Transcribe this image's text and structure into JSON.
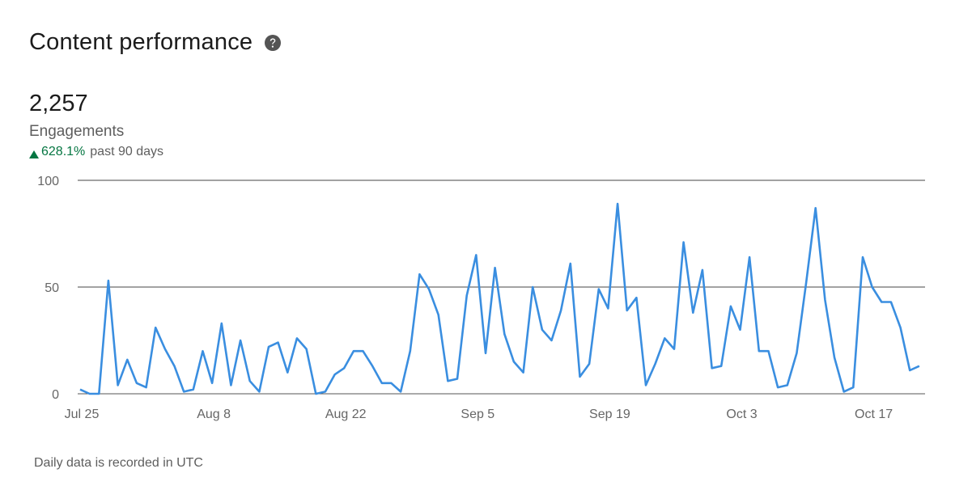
{
  "header": {
    "title": "Content performance",
    "help_icon": "question-circle-icon"
  },
  "metric": {
    "value": "2,257",
    "label": "Engagements",
    "change": "628.1%",
    "change_direction": "up",
    "change_icon": "triangle-up-icon",
    "period": "past 90 days",
    "change_color": "#057642"
  },
  "footnote": "Daily data is recorded in UTC",
  "chart_data": {
    "type": "line",
    "title": "",
    "xlabel": "",
    "ylabel": "",
    "ylim": [
      0,
      100
    ],
    "y_ticks": [
      "100",
      "50",
      "0"
    ],
    "grid": "horizontal",
    "x_tick_labels": [
      "Jul 25",
      "Aug 8",
      "Aug 22",
      "Sep 5",
      "Sep 19",
      "Oct 3",
      "Oct 17"
    ],
    "x_start": "Jul 25",
    "line_color": "#3a8ee0",
    "series": [
      {
        "values": [
          2,
          0,
          0,
          53,
          4,
          16,
          5,
          3,
          31,
          21,
          13,
          1,
          2,
          20,
          5,
          33,
          4,
          25,
          6,
          1,
          22,
          24,
          10,
          26,
          21,
          0,
          1,
          9,
          12,
          20,
          20,
          13,
          5,
          5,
          1,
          20,
          56,
          49,
          37,
          6,
          7,
          46,
          65,
          19,
          59,
          28,
          15,
          10,
          50,
          30,
          25,
          39,
          61,
          8,
          14,
          49,
          40,
          89,
          39,
          45,
          4,
          14,
          26,
          21,
          71,
          38,
          58,
          12,
          13,
          41,
          30,
          64,
          20,
          20,
          3,
          4,
          19,
          52,
          87,
          44,
          17,
          1,
          3,
          64,
          50,
          43,
          43,
          31,
          11,
          13
        ]
      }
    ]
  }
}
